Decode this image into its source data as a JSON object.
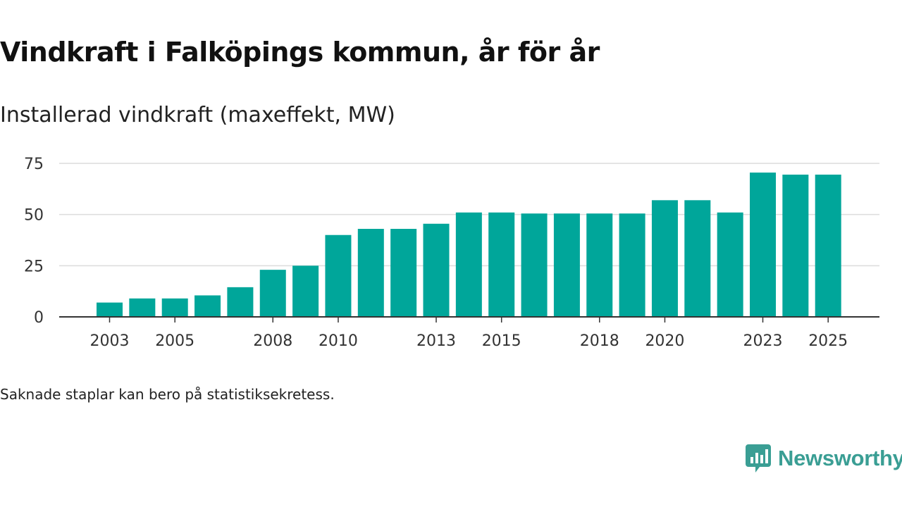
{
  "chart_data": {
    "type": "bar",
    "title": "Vindkraft i Falköpings kommun, år för år",
    "subtitle": "Installerad vindkraft (maxeffekt, MW)",
    "xlabel": "",
    "ylabel": "",
    "categories": [
      "2003",
      "2004",
      "2005",
      "2006",
      "2007",
      "2008",
      "2009",
      "2010",
      "2011",
      "2012",
      "2013",
      "2014",
      "2015",
      "2016",
      "2017",
      "2018",
      "2019",
      "2020",
      "2021",
      "2022",
      "2023",
      "2024",
      "2025"
    ],
    "values": [
      7,
      9,
      9,
      10.5,
      14.5,
      23,
      25,
      40,
      43,
      43,
      45.5,
      51,
      51,
      50.5,
      50.5,
      50.5,
      50.5,
      57,
      57,
      51,
      70.5,
      69.5,
      69.5
    ],
    "x_tick_labels": [
      "2003",
      "2005",
      "2008",
      "2010",
      "2013",
      "2015",
      "2018",
      "2020",
      "2023",
      "2025"
    ],
    "y_ticks": [
      0,
      25,
      50,
      75
    ],
    "ylim": [
      0,
      75
    ],
    "grid": true,
    "legend": "none",
    "bar_color": "#00a69a"
  },
  "footnote": "Saknade staplar kan bero på statistiksekretess.",
  "brand": {
    "name": "Newsworthy",
    "color": "#3a9e94",
    "icon": "newsworthy-logo-icon"
  }
}
